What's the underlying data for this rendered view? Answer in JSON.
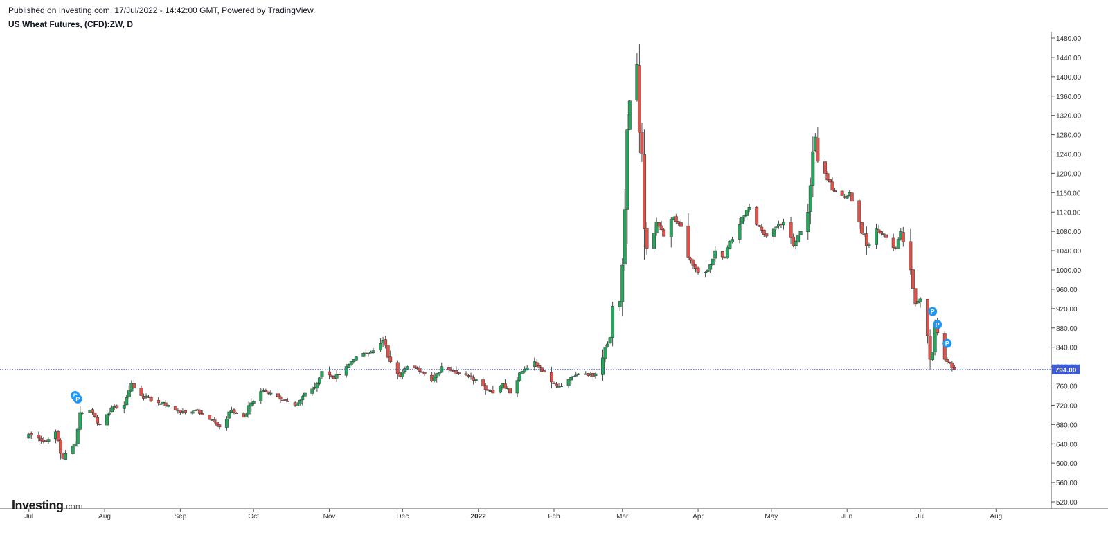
{
  "header": {
    "published": "Published on Investing.com, 17/Jul/2022 - 14:42:00 GMT, Powered by TradingView.",
    "title": "US Wheat Futures, (CFD):ZW, D"
  },
  "logo": {
    "main": "Investing",
    "suffix": ".com"
  },
  "colors": {
    "up": "#26a65b",
    "down": "#e0534a",
    "wick": "#4a4a4a",
    "price_line": "#3b5bdb",
    "marker": "#2196f3"
  },
  "chart_data": {
    "type": "candlestick",
    "ylim": [
      500,
      1480
    ],
    "y_ticks": [
      "1480.00",
      "1440.00",
      "1400.00",
      "1360.00",
      "1320.00",
      "1280.00",
      "1240.00",
      "1200.00",
      "1160.00",
      "1120.00",
      "1080.00",
      "1040.00",
      "1000.00",
      "960.00",
      "920.00",
      "880.00",
      "840.00",
      "800.00",
      "760.00",
      "720.00",
      "680.00",
      "640.00",
      "600.00",
      "560.00",
      "520.00"
    ],
    "x_ticks": [
      "Jul",
      "Aug",
      "Sep",
      "Oct",
      "Nov",
      "Dec",
      "2022",
      "Feb",
      "Mar",
      "Apr",
      "May",
      "Jun",
      "Jul",
      "Aug"
    ],
    "last_price": 794.0,
    "last_price_label": "794.00",
    "marker_label": "P",
    "markers": [
      {
        "date": "2021-07-20",
        "price": 740
      },
      {
        "date": "2021-07-21",
        "price": 733
      },
      {
        "date": "2022-07-06",
        "price": 914
      },
      {
        "date": "2022-07-08",
        "price": 887
      },
      {
        "date": "2022-07-12",
        "price": 848
      }
    ],
    "closes": [
      {
        "date": "2021-07-01",
        "close": 660
      },
      {
        "date": "2021-07-08",
        "close": 645
      },
      {
        "date": "2021-07-12",
        "close": 665
      },
      {
        "date": "2021-07-15",
        "close": 610
      },
      {
        "date": "2021-07-20",
        "close": 640
      },
      {
        "date": "2021-07-22",
        "close": 705
      },
      {
        "date": "2021-07-26",
        "close": 710
      },
      {
        "date": "2021-07-30",
        "close": 680
      },
      {
        "date": "2021-08-04",
        "close": 715
      },
      {
        "date": "2021-08-09",
        "close": 720
      },
      {
        "date": "2021-08-12",
        "close": 765
      },
      {
        "date": "2021-08-16",
        "close": 740
      },
      {
        "date": "2021-08-23",
        "close": 725
      },
      {
        "date": "2021-08-27",
        "close": 720
      },
      {
        "date": "2021-09-01",
        "close": 705
      },
      {
        "date": "2021-09-07",
        "close": 710
      },
      {
        "date": "2021-09-10",
        "close": 700
      },
      {
        "date": "2021-09-14",
        "close": 690
      },
      {
        "date": "2021-09-17",
        "close": 675
      },
      {
        "date": "2021-09-22",
        "close": 710
      },
      {
        "date": "2021-09-27",
        "close": 695
      },
      {
        "date": "2021-09-30",
        "close": 725
      },
      {
        "date": "2021-10-05",
        "close": 750
      },
      {
        "date": "2021-10-08",
        "close": 745
      },
      {
        "date": "2021-10-13",
        "close": 730
      },
      {
        "date": "2021-10-18",
        "close": 720
      },
      {
        "date": "2021-10-22",
        "close": 745
      },
      {
        "date": "2021-10-27",
        "close": 765
      },
      {
        "date": "2021-10-29",
        "close": 790
      },
      {
        "date": "2021-11-03",
        "close": 775
      },
      {
        "date": "2021-11-08",
        "close": 800
      },
      {
        "date": "2021-11-12",
        "close": 820
      },
      {
        "date": "2021-11-18",
        "close": 830
      },
      {
        "date": "2021-11-23",
        "close": 855
      },
      {
        "date": "2021-11-26",
        "close": 810
      },
      {
        "date": "2021-11-30",
        "close": 780
      },
      {
        "date": "2021-12-03",
        "close": 800
      },
      {
        "date": "2021-12-08",
        "close": 790
      },
      {
        "date": "2021-12-13",
        "close": 770
      },
      {
        "date": "2021-12-17",
        "close": 800
      },
      {
        "date": "2021-12-22",
        "close": 790
      },
      {
        "date": "2021-12-28",
        "close": 780
      },
      {
        "date": "2022-01-03",
        "close": 760
      },
      {
        "date": "2022-01-07",
        "close": 745
      },
      {
        "date": "2022-01-11",
        "close": 765
      },
      {
        "date": "2022-01-14",
        "close": 745
      },
      {
        "date": "2022-01-19",
        "close": 790
      },
      {
        "date": "2022-01-24",
        "close": 810
      },
      {
        "date": "2022-01-27",
        "close": 790
      },
      {
        "date": "2022-02-01",
        "close": 765
      },
      {
        "date": "2022-02-04",
        "close": 760
      },
      {
        "date": "2022-02-09",
        "close": 780
      },
      {
        "date": "2022-02-14",
        "close": 785
      },
      {
        "date": "2022-02-17",
        "close": 780
      },
      {
        "date": "2022-02-22",
        "close": 840
      },
      {
        "date": "2022-02-24",
        "close": 860
      },
      {
        "date": "2022-02-25",
        "close": 925
      },
      {
        "date": "2022-02-28",
        "close": 935
      },
      {
        "date": "2022-03-01",
        "close": 1010
      },
      {
        "date": "2022-03-02",
        "close": 1125
      },
      {
        "date": "2022-03-03",
        "close": 1290
      },
      {
        "date": "2022-03-04",
        "close": 1350
      },
      {
        "date": "2022-03-07",
        "close": 1425
      },
      {
        "date": "2022-03-08",
        "close": 1285
      },
      {
        "date": "2022-03-09",
        "close": 1240
      },
      {
        "date": "2022-03-10",
        "close": 1085
      },
      {
        "date": "2022-03-11",
        "close": 1045
      },
      {
        "date": "2022-03-15",
        "close": 1100
      },
      {
        "date": "2022-03-18",
        "close": 1070
      },
      {
        "date": "2022-03-22",
        "close": 1110
      },
      {
        "date": "2022-03-25",
        "close": 1090
      },
      {
        "date": "2022-03-29",
        "close": 1020
      },
      {
        "date": "2022-04-01",
        "close": 995
      },
      {
        "date": "2022-04-05",
        "close": 1000
      },
      {
        "date": "2022-04-08",
        "close": 1040
      },
      {
        "date": "2022-04-12",
        "close": 1025
      },
      {
        "date": "2022-04-14",
        "close": 1060
      },
      {
        "date": "2022-04-19",
        "close": 1110
      },
      {
        "date": "2022-04-22",
        "close": 1130
      },
      {
        "date": "2022-04-26",
        "close": 1090
      },
      {
        "date": "2022-04-29",
        "close": 1070
      },
      {
        "date": "2022-05-04",
        "close": 1095
      },
      {
        "date": "2022-05-06",
        "close": 1100
      },
      {
        "date": "2022-05-10",
        "close": 1050
      },
      {
        "date": "2022-05-13",
        "close": 1080
      },
      {
        "date": "2022-05-16",
        "close": 1120
      },
      {
        "date": "2022-05-17",
        "close": 1175
      },
      {
        "date": "2022-05-18",
        "close": 1245
      },
      {
        "date": "2022-05-19",
        "close": 1275
      },
      {
        "date": "2022-05-20",
        "close": 1225
      },
      {
        "date": "2022-05-23",
        "close": 1200
      },
      {
        "date": "2022-05-26",
        "close": 1165
      },
      {
        "date": "2022-05-31",
        "close": 1150
      },
      {
        "date": "2022-06-02",
        "close": 1160
      },
      {
        "date": "2022-06-06",
        "close": 1100
      },
      {
        "date": "2022-06-09",
        "close": 1050
      },
      {
        "date": "2022-06-13",
        "close": 1085
      },
      {
        "date": "2022-06-16",
        "close": 1075
      },
      {
        "date": "2022-06-21",
        "close": 1045
      },
      {
        "date": "2022-06-23",
        "close": 1080
      },
      {
        "date": "2022-06-27",
        "close": 1000
      },
      {
        "date": "2022-06-29",
        "close": 930
      },
      {
        "date": "2022-07-01",
        "close": 940
      },
      {
        "date": "2022-07-05",
        "close": 815
      },
      {
        "date": "2022-07-06",
        "close": 830
      },
      {
        "date": "2022-07-07",
        "close": 890
      },
      {
        "date": "2022-07-08",
        "close": 870
      },
      {
        "date": "2022-07-11",
        "close": 815
      },
      {
        "date": "2022-07-12",
        "close": 810
      },
      {
        "date": "2022-07-13",
        "close": 808
      },
      {
        "date": "2022-07-14",
        "close": 797
      },
      {
        "date": "2022-07-15",
        "close": 794
      }
    ]
  }
}
